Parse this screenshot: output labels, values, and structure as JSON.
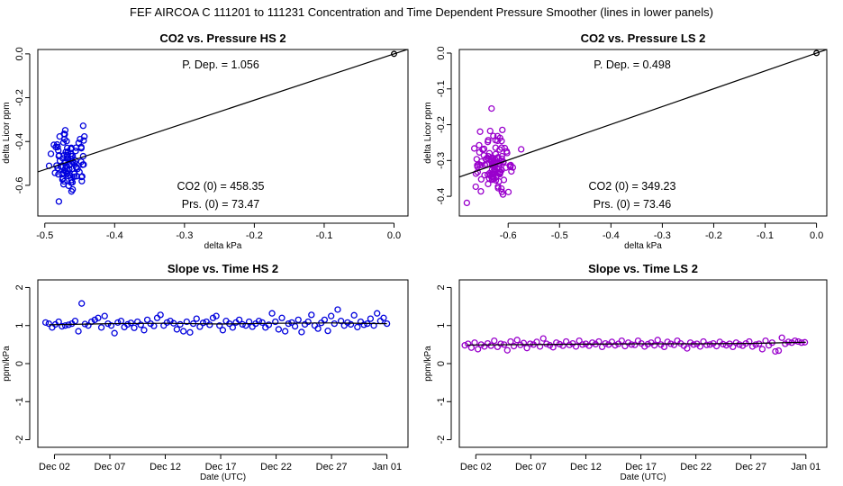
{
  "figure": {
    "main_title": "FEF   AIRCOA C   111201 to 111231   Concentration and Time Dependent Pressure Smoother (lines in lower panels)",
    "colors": {
      "hs": "#0000dd",
      "ls": "#9900cc",
      "axis": "#000000"
    }
  },
  "chart_data": [
    {
      "id": "hs-pressure",
      "type": "scatter",
      "title": "CO2 vs. Pressure HS 2",
      "xlabel": "delta kPa",
      "ylabel": "delta Licor ppm",
      "xlim": [
        -0.51,
        0.02
      ],
      "ylim": [
        -0.74,
        0.02
      ],
      "xticks": [
        -0.5,
        -0.4,
        -0.3,
        -0.2,
        -0.1,
        0.0
      ],
      "xtick_labels": [
        "-0.5",
        "-0.4",
        "-0.3",
        "-0.2",
        "-0.1",
        "0.0"
      ],
      "yticks": [
        0.0,
        -0.2,
        -0.4,
        -0.6
      ],
      "ytick_labels": [
        "0.0",
        "-0.2",
        "-0.4",
        "-0.6"
      ],
      "annotations": {
        "p_dep": "P. Dep. =  1.056",
        "co2_0": "CO2 (0) =  458.35",
        "prs_0": "Prs. (0) =  73.47"
      },
      "fit_line": {
        "slope": 1.056,
        "intercept": 0.0
      },
      "origin_point": [
        0.0,
        0.0
      ],
      "color": "#0000dd",
      "cluster": {
        "x_center": -0.466,
        "x_spread": 0.013,
        "y_center": -0.5,
        "y_spread": 0.07,
        "n": 95
      }
    },
    {
      "id": "ls-pressure",
      "type": "scatter",
      "title": "CO2 vs. Pressure LS 2",
      "xlabel": "delta kPa",
      "ylabel": "delta Licor ppm",
      "xlim": [
        -0.695,
        0.02
      ],
      "ylim": [
        -0.455,
        0.01
      ],
      "xticks": [
        -0.6,
        -0.5,
        -0.4,
        -0.3,
        -0.2,
        -0.1,
        0.0
      ],
      "xtick_labels": [
        "-0.6",
        "-0.5",
        "-0.4",
        "-0.3",
        "-0.2",
        "-0.1",
        "0.0"
      ],
      "yticks": [
        0.0,
        -0.1,
        -0.2,
        -0.3,
        -0.4
      ],
      "ytick_labels": [
        "0.0",
        "-0.1",
        "-0.2",
        "-0.3",
        "-0.4"
      ],
      "annotations": {
        "p_dep": "P. Dep. =  0.498",
        "co2_0": "CO2 (0) =  349.23",
        "prs_0": "Prs. (0) =  73.46"
      },
      "fit_line": {
        "slope": 0.498,
        "intercept": 0.0
      },
      "origin_point": [
        0.0,
        0.0
      ],
      "color": "#9900cc",
      "cluster": {
        "x_center": -0.628,
        "x_spread": 0.017,
        "y_center": -0.315,
        "y_spread": 0.05,
        "n": 110
      }
    },
    {
      "id": "hs-time",
      "type": "scatter",
      "title": "Slope vs. Time HS 2",
      "xlabel": "Date (UTC)",
      "ylabel": "ppm/kPa",
      "xlim": [
        -1.5,
        31.9
      ],
      "ylim": [
        -2.2,
        2.2
      ],
      "xticks": [
        0,
        5,
        10,
        15,
        20,
        25,
        30
      ],
      "xtick_labels": [
        "Dec 02",
        "Dec 07",
        "Dec 12",
        "Dec 17",
        "Dec 22",
        "Dec 27",
        "Jan 01"
      ],
      "yticks": [
        -2,
        -1,
        0,
        1,
        2
      ],
      "ytick_labels": [
        "-2",
        "-1",
        "0",
        "1",
        "2"
      ],
      "smoother": {
        "x": [
          -0.5,
          5,
          10,
          15,
          20,
          25,
          30
        ],
        "y": [
          1.02,
          1.05,
          1.06,
          1.04,
          1.06,
          1.07,
          1.05
        ]
      },
      "color": "#0000dd",
      "points": [
        1.08,
        1.05,
        0.95,
        1.03,
        1.1,
        0.98,
        1.0,
        1.02,
        1.05,
        1.12,
        0.85,
        1.58,
        1.04,
        1.0,
        1.1,
        1.15,
        1.2,
        0.95,
        1.25,
        1.05,
        1.0,
        0.8,
        1.08,
        1.12,
        0.96,
        1.03,
        1.07,
        0.94,
        1.1,
        1.02,
        0.88,
        1.15,
        1.05,
        0.99,
        1.2,
        1.28,
        1.0,
        1.08,
        1.12,
        1.06,
        0.9,
        1.03,
        0.85,
        1.1,
        0.82,
        1.05,
        1.18,
        0.97,
        1.07,
        1.1,
        1.02,
        1.2,
        1.25,
        1.0,
        0.88,
        1.12,
        1.05,
        0.95,
        1.08,
        1.15,
        1.03,
        1.0,
        1.1,
        0.97,
        1.05,
        1.12,
        1.08,
        0.95,
        1.02,
        1.32,
        1.1,
        0.9,
        1.2,
        0.85,
        1.05,
        1.08,
        0.98,
        1.15,
        0.83,
        1.03,
        1.1,
        1.28,
        1.0,
        0.92,
        1.07,
        1.15,
        0.86,
        1.25,
        1.05,
        1.42,
        1.12,
        1.0,
        1.08,
        1.03,
        1.27,
        0.96,
        1.1,
        1.02,
        1.05,
        1.18,
        1.0,
        1.32,
        1.12,
        1.2,
        1.05
      ],
      "points_x_range": [
        -0.8,
        30.0
      ]
    },
    {
      "id": "ls-time",
      "type": "scatter",
      "title": "Slope vs. Time LS 2",
      "xlabel": "Date (UTC)",
      "ylabel": "ppm/kPa",
      "xlim": [
        -1.5,
        31.9
      ],
      "ylim": [
        -2.2,
        2.2
      ],
      "xticks": [
        0,
        5,
        10,
        15,
        20,
        25,
        30
      ],
      "xtick_labels": [
        "Dec 02",
        "Dec 07",
        "Dec 12",
        "Dec 17",
        "Dec 22",
        "Dec 27",
        "Jan 01"
      ],
      "yticks": [
        -2,
        -1,
        0,
        1,
        2
      ],
      "ytick_labels": [
        "-2",
        "-1",
        "0",
        "1",
        "2"
      ],
      "smoother": {
        "x": [
          -0.8,
          5,
          10,
          15,
          20,
          25,
          30
        ],
        "y": [
          0.49,
          0.5,
          0.51,
          0.52,
          0.52,
          0.53,
          0.56
        ]
      },
      "color": "#9900cc",
      "points": [
        0.48,
        0.52,
        0.42,
        0.55,
        0.38,
        0.5,
        0.45,
        0.53,
        0.47,
        0.6,
        0.44,
        0.52,
        0.5,
        0.35,
        0.58,
        0.46,
        0.62,
        0.49,
        0.54,
        0.41,
        0.52,
        0.5,
        0.57,
        0.45,
        0.66,
        0.52,
        0.48,
        0.43,
        0.55,
        0.51,
        0.47,
        0.58,
        0.49,
        0.53,
        0.45,
        0.6,
        0.5,
        0.52,
        0.47,
        0.55,
        0.51,
        0.58,
        0.44,
        0.53,
        0.5,
        0.57,
        0.48,
        0.52,
        0.6,
        0.46,
        0.55,
        0.5,
        0.49,
        0.6,
        0.53,
        0.45,
        0.51,
        0.55,
        0.48,
        0.62,
        0.5,
        0.44,
        0.57,
        0.52,
        0.49,
        0.6,
        0.53,
        0.47,
        0.4,
        0.55,
        0.5,
        0.52,
        0.45,
        0.58,
        0.49,
        0.5,
        0.53,
        0.46,
        0.57,
        0.51,
        0.48,
        0.52,
        0.44,
        0.55,
        0.5,
        0.47,
        0.53,
        0.58,
        0.45,
        0.5,
        0.52,
        0.38,
        0.6,
        0.48,
        0.55,
        0.32,
        0.34,
        0.68,
        0.52,
        0.57,
        0.55,
        0.6,
        0.58,
        0.55,
        0.56
      ],
      "points_x_range": [
        -1.0,
        29.9
      ]
    }
  ]
}
